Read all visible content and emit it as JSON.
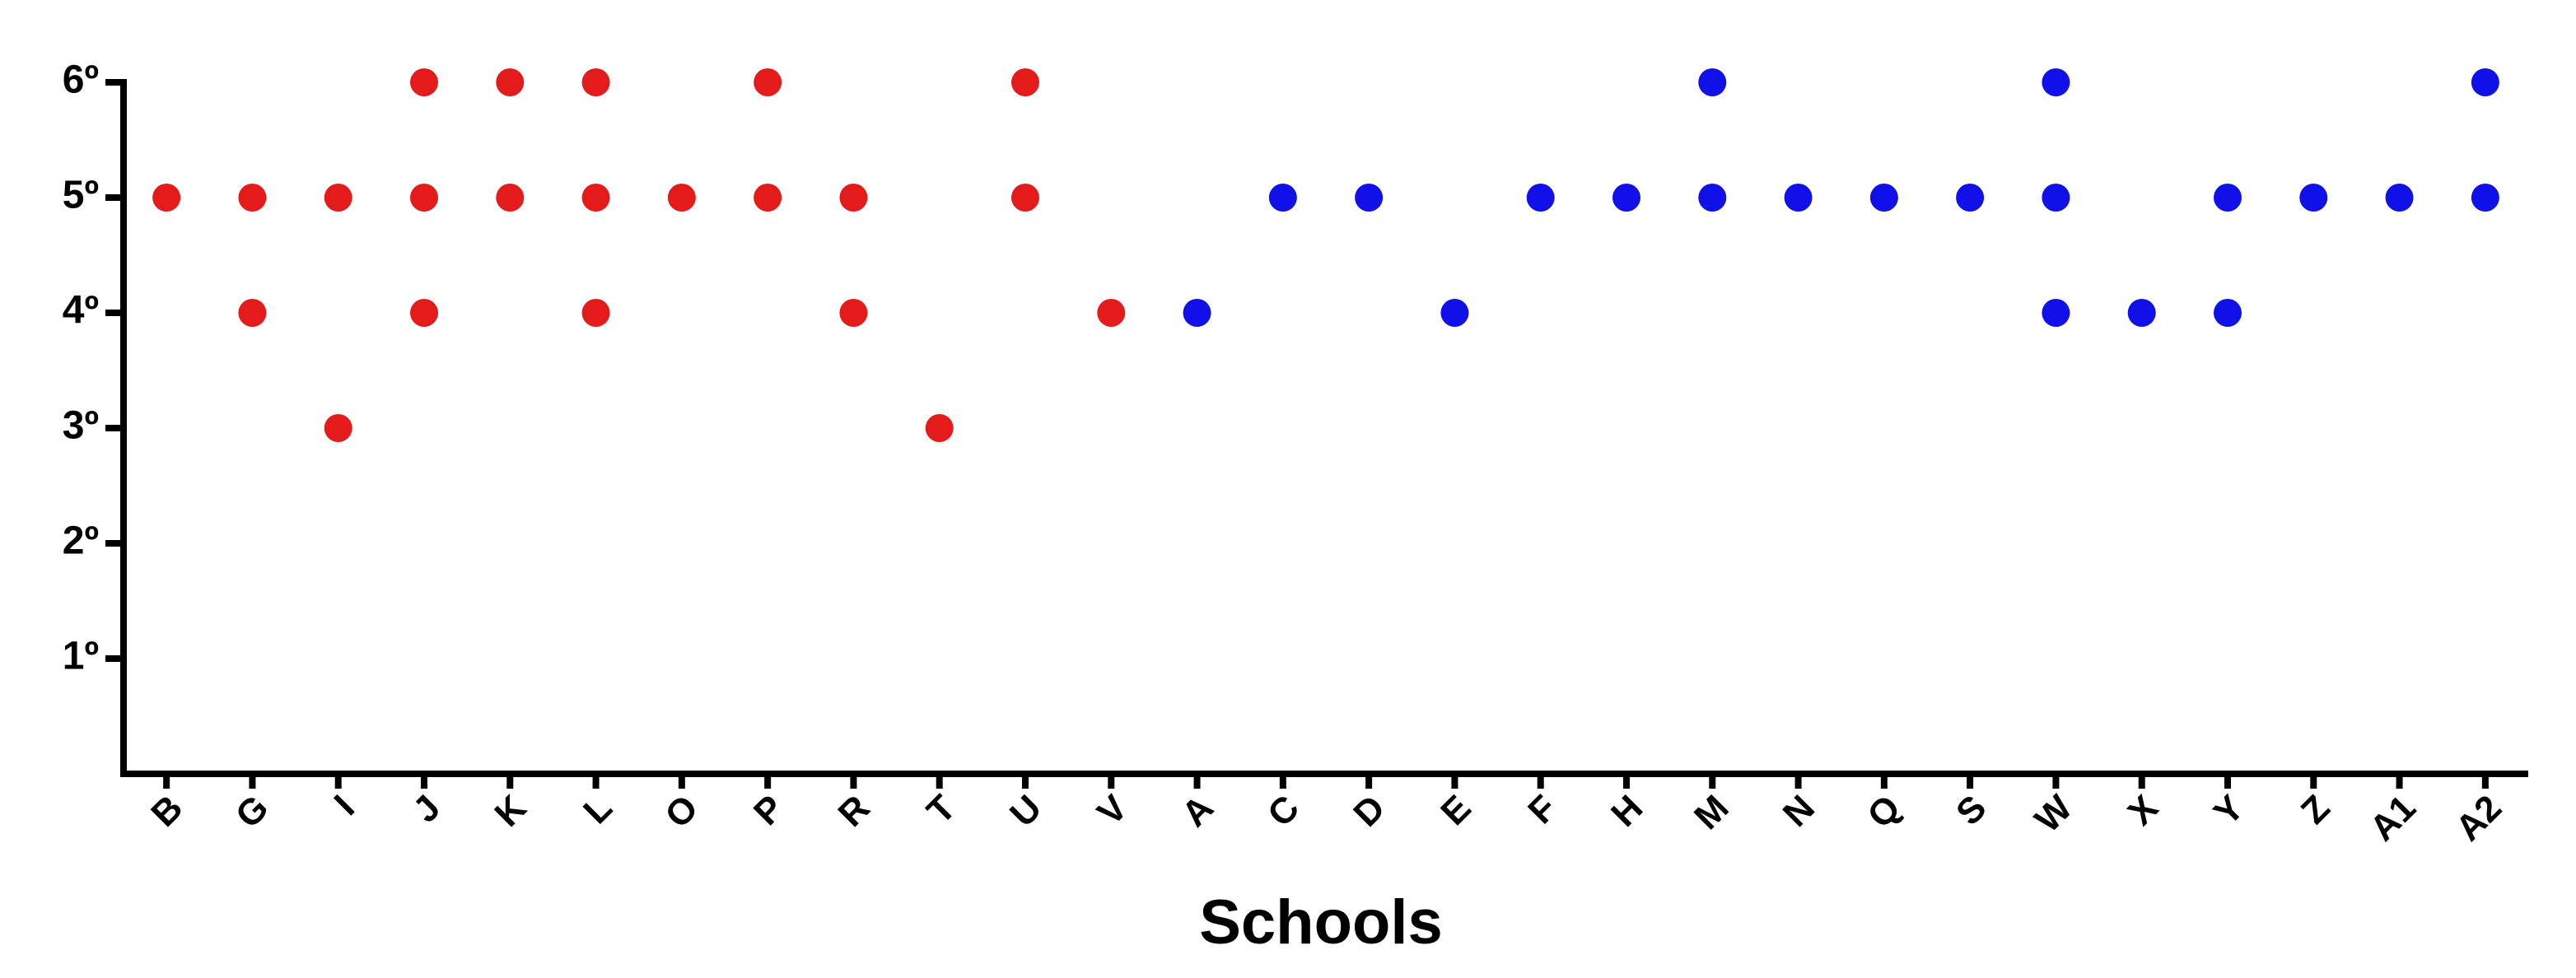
{
  "chart_data": {
    "type": "strip",
    "x_label": "Schools",
    "categories": [
      "B",
      "G",
      "I",
      "J",
      "K",
      "L",
      "O",
      "P",
      "R",
      "T",
      "U",
      "V",
      "A",
      "C",
      "D",
      "E",
      "F",
      "H",
      "M",
      "N",
      "Q",
      "S",
      "W",
      "X",
      "Y",
      "Z",
      "A1",
      "A2"
    ],
    "series": [
      {
        "color": "#e31b1b",
        "values": [
          [
            5
          ],
          [
            5,
            4
          ],
          [
            5,
            3
          ],
          [
            6,
            5,
            4
          ],
          [
            6,
            5
          ],
          [
            6,
            5,
            4
          ],
          [
            5
          ],
          [
            6,
            5
          ],
          [
            5,
            4
          ],
          [
            3
          ],
          [
            6,
            5
          ],
          [
            4
          ],
          null,
          null,
          null,
          null,
          null,
          null,
          null,
          null,
          null,
          null,
          null,
          null,
          null,
          null,
          null,
          null
        ]
      },
      {
        "color": "#1010e8",
        "values": [
          null,
          null,
          null,
          null,
          null,
          null,
          null,
          null,
          null,
          null,
          null,
          null,
          [
            4
          ],
          [
            5
          ],
          [
            5
          ],
          [
            4
          ],
          [
            5
          ],
          [
            5
          ],
          [
            6,
            5
          ],
          [
            5
          ],
          [
            5
          ],
          [
            5
          ],
          [
            6,
            5,
            4
          ],
          [
            4
          ],
          [
            5,
            4
          ],
          [
            5
          ],
          [
            5
          ],
          [
            6,
            5
          ]
        ]
      }
    ],
    "ylim": [
      0,
      6
    ],
    "yticks": [
      {
        "value": 1,
        "label": "1º"
      },
      {
        "value": 2,
        "label": "2º"
      },
      {
        "value": 3,
        "label": "3º"
      },
      {
        "value": 4,
        "label": "4º"
      },
      {
        "value": 5,
        "label": "5º"
      },
      {
        "value": 6,
        "label": "6º"
      }
    ],
    "grid": false
  }
}
